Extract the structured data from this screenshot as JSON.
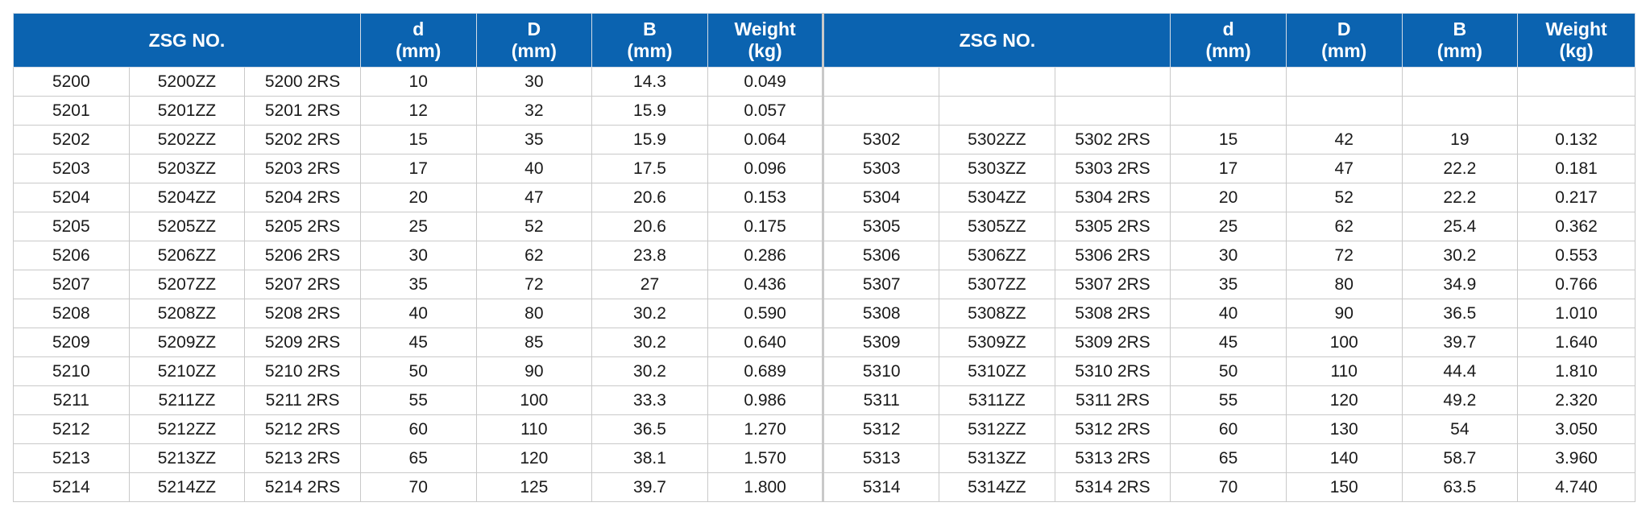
{
  "header": {
    "left": {
      "zsg": "ZSG NO.",
      "d_sym": "d",
      "d_unit": "(mm)",
      "D_sym": "D",
      "D_unit": "(mm)",
      "B_sym": "B",
      "B_unit": "(mm)",
      "w_sym": "Weight",
      "w_unit": "(kg)"
    },
    "right": {
      "zsg": "ZSG NO.",
      "d_sym": "d",
      "d_unit": "(mm)",
      "D_sym": "D",
      "D_unit": "(mm)",
      "B_sym": "B",
      "B_unit": "(mm)",
      "w_sym": "Weight",
      "w_unit": "(kg)"
    }
  },
  "rows": [
    {
      "l": [
        "5200",
        "5200ZZ",
        "5200 2RS",
        "10",
        "30",
        "14.3",
        "0.049"
      ],
      "r": [
        "",
        "",
        "",
        "",
        "",
        "",
        ""
      ]
    },
    {
      "l": [
        "5201",
        "5201ZZ",
        "5201 2RS",
        "12",
        "32",
        "15.9",
        "0.057"
      ],
      "r": [
        "",
        "",
        "",
        "",
        "",
        "",
        ""
      ]
    },
    {
      "l": [
        "5202",
        "5202ZZ",
        "5202 2RS",
        "15",
        "35",
        "15.9",
        "0.064"
      ],
      "r": [
        "5302",
        "5302ZZ",
        "5302 2RS",
        "15",
        "42",
        "19",
        "0.132"
      ]
    },
    {
      "l": [
        "5203",
        "5203ZZ",
        "5203 2RS",
        "17",
        "40",
        "17.5",
        "0.096"
      ],
      "r": [
        "5303",
        "5303ZZ",
        "5303 2RS",
        "17",
        "47",
        "22.2",
        "0.181"
      ]
    },
    {
      "l": [
        "5204",
        "5204ZZ",
        "5204 2RS",
        "20",
        "47",
        "20.6",
        "0.153"
      ],
      "r": [
        "5304",
        "5304ZZ",
        "5304 2RS",
        "20",
        "52",
        "22.2",
        "0.217"
      ]
    },
    {
      "l": [
        "5205",
        "5205ZZ",
        "5205 2RS",
        "25",
        "52",
        "20.6",
        "0.175"
      ],
      "r": [
        "5305",
        "5305ZZ",
        "5305 2RS",
        "25",
        "62",
        "25.4",
        "0.362"
      ]
    },
    {
      "l": [
        "5206",
        "5206ZZ",
        "5206 2RS",
        "30",
        "62",
        "23.8",
        "0.286"
      ],
      "r": [
        "5306",
        "5306ZZ",
        "5306 2RS",
        "30",
        "72",
        "30.2",
        "0.553"
      ]
    },
    {
      "l": [
        "5207",
        "5207ZZ",
        "5207 2RS",
        "35",
        "72",
        "27",
        "0.436"
      ],
      "r": [
        "5307",
        "5307ZZ",
        "5307 2RS",
        "35",
        "80",
        "34.9",
        "0.766"
      ]
    },
    {
      "l": [
        "5208",
        "5208ZZ",
        "5208 2RS",
        "40",
        "80",
        "30.2",
        "0.590"
      ],
      "r": [
        "5308",
        "5308ZZ",
        "5308 2RS",
        "40",
        "90",
        "36.5",
        "1.010"
      ]
    },
    {
      "l": [
        "5209",
        "5209ZZ",
        "5209 2RS",
        "45",
        "85",
        "30.2",
        "0.640"
      ],
      "r": [
        "5309",
        "5309ZZ",
        "5309 2RS",
        "45",
        "100",
        "39.7",
        "1.640"
      ]
    },
    {
      "l": [
        "5210",
        "5210ZZ",
        "5210 2RS",
        "50",
        "90",
        "30.2",
        "0.689"
      ],
      "r": [
        "5310",
        "5310ZZ",
        "5310 2RS",
        "50",
        "110",
        "44.4",
        "1.810"
      ]
    },
    {
      "l": [
        "5211",
        "5211ZZ",
        "5211 2RS",
        "55",
        "100",
        "33.3",
        "0.986"
      ],
      "r": [
        "5311",
        "5311ZZ",
        "5311 2RS",
        "55",
        "120",
        "49.2",
        "2.320"
      ]
    },
    {
      "l": [
        "5212",
        "5212ZZ",
        "5212 2RS",
        "60",
        "110",
        "36.5",
        "1.270"
      ],
      "r": [
        "5312",
        "5312ZZ",
        "5312 2RS",
        "60",
        "130",
        "54",
        "3.050"
      ]
    },
    {
      "l": [
        "5213",
        "5213ZZ",
        "5213 2RS",
        "65",
        "120",
        "38.1",
        "1.570"
      ],
      "r": [
        "5313",
        "5313ZZ",
        "5313 2RS",
        "65",
        "140",
        "58.7",
        "3.960"
      ]
    },
    {
      "l": [
        "5214",
        "5214ZZ",
        "5214 2RS",
        "70",
        "125",
        "39.7",
        "1.800"
      ],
      "r": [
        "5314",
        "5314ZZ",
        "5314 2RS",
        "70",
        "150",
        "63.5",
        "4.740"
      ]
    }
  ]
}
